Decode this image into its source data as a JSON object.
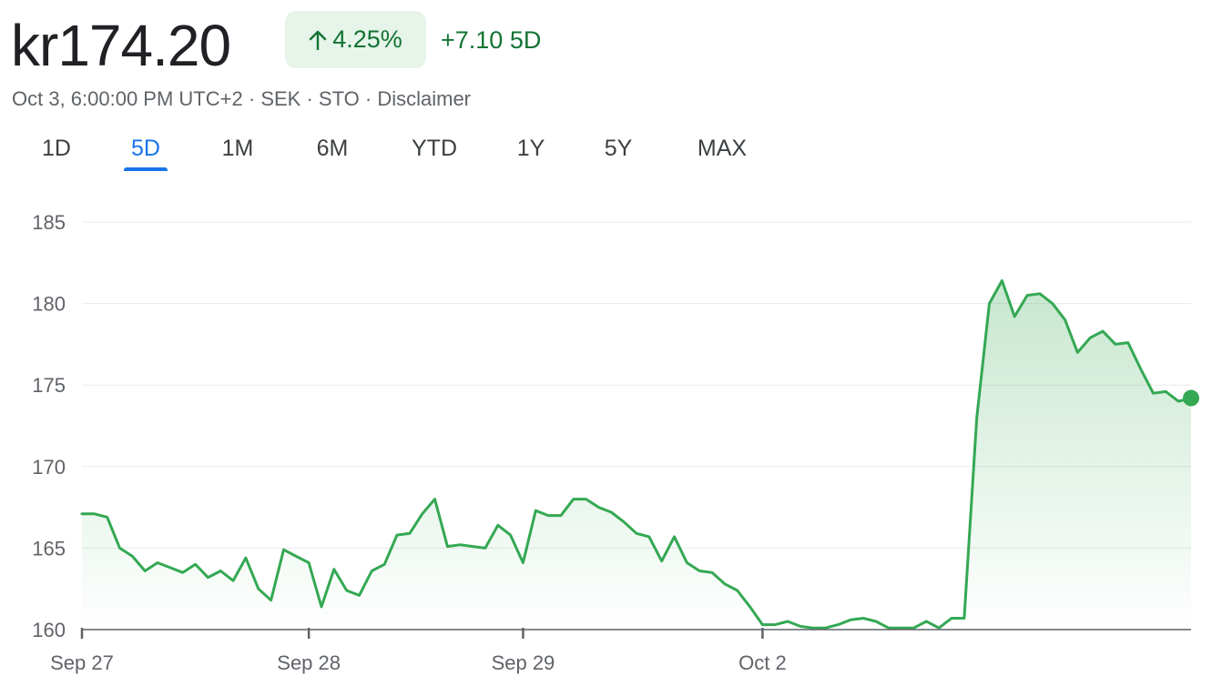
{
  "header": {
    "price": "kr174.20",
    "percent_change": "4.25%",
    "abs_change": "+7.10 5D",
    "timestamp": "Oct 3, 6:00:00 PM UTC+2",
    "currency": "SEK",
    "exchange": "STO",
    "disclaimer": "Disclaimer",
    "separator": "·",
    "trend_icon": "arrow-up-icon"
  },
  "colors": {
    "up_green": "#137333",
    "line_green": "#34a853",
    "pill_bg": "#e6f4ea",
    "active_tab": "#1a73e8",
    "grid": "#e8eaed"
  },
  "tabs": [
    {
      "label": "1D",
      "active": false
    },
    {
      "label": "5D",
      "active": true
    },
    {
      "label": "1M",
      "active": false
    },
    {
      "label": "6M",
      "active": false
    },
    {
      "label": "YTD",
      "active": false
    },
    {
      "label": "1Y",
      "active": false
    },
    {
      "label": "5Y",
      "active": false
    },
    {
      "label": "MAX",
      "active": false
    }
  ],
  "chart_data": {
    "type": "area",
    "ylim": [
      160,
      185
    ],
    "yticks": [
      160,
      165,
      170,
      175,
      180,
      185
    ],
    "xticks": [
      {
        "label": "Sep 27",
        "index": 0
      },
      {
        "label": "Sep 28",
        "index": 18
      },
      {
        "label": "Sep 29",
        "index": 35
      },
      {
        "label": "Oct 2",
        "index": 54
      }
    ],
    "values": [
      167.1,
      167.1,
      166.9,
      165.0,
      164.5,
      163.6,
      164.1,
      163.8,
      163.5,
      164.0,
      163.2,
      163.6,
      163.0,
      164.4,
      162.5,
      161.8,
      164.9,
      164.5,
      164.1,
      161.4,
      163.7,
      162.4,
      162.1,
      163.6,
      164.0,
      165.8,
      165.9,
      167.1,
      168.0,
      165.1,
      165.2,
      165.1,
      165.0,
      166.4,
      165.8,
      164.1,
      167.3,
      167.0,
      167.0,
      168.0,
      168.0,
      167.5,
      167.2,
      166.6,
      165.9,
      165.7,
      164.2,
      165.7,
      164.1,
      163.6,
      163.5,
      162.8,
      162.4,
      161.4,
      160.3,
      160.3,
      160.5,
      160.2,
      160.1,
      160.1,
      160.3,
      160.6,
      160.7,
      160.5,
      160.1,
      160.1,
      160.1,
      160.5,
      160.1,
      160.7,
      160.7,
      173.0,
      180.0,
      181.4,
      179.2,
      180.5,
      180.6,
      180.0,
      179.0,
      177.0,
      177.9,
      178.3,
      177.5,
      177.6,
      176.0,
      174.5,
      174.6,
      174.0,
      174.2
    ],
    "last_value": 174.2
  }
}
